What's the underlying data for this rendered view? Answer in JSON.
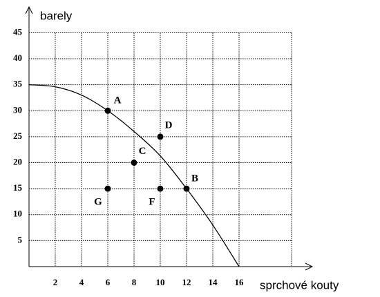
{
  "chart_data": {
    "type": "scatter",
    "y_label": "barely",
    "x_label": "sprchové kouty",
    "xlim": [
      0,
      20
    ],
    "ylim": [
      0,
      45
    ],
    "xticks": [
      2,
      4,
      6,
      8,
      10,
      12,
      14,
      16
    ],
    "yticks": [
      5,
      10,
      15,
      20,
      25,
      30,
      35,
      40,
      45
    ],
    "grid": true,
    "curve": {
      "x": [
        0,
        2,
        4,
        6,
        8,
        10,
        12,
        14,
        16
      ],
      "y": [
        35,
        34.6,
        33,
        30,
        26,
        21.3,
        15,
        8,
        0
      ],
      "color": "#000000"
    },
    "points": {
      "labels": [
        "A",
        "B",
        "C",
        "D",
        "F",
        "G"
      ],
      "x": [
        6,
        12,
        8,
        10,
        10,
        6
      ],
      "y": [
        30,
        15,
        20,
        25,
        15,
        15
      ],
      "color": "#000000"
    }
  }
}
